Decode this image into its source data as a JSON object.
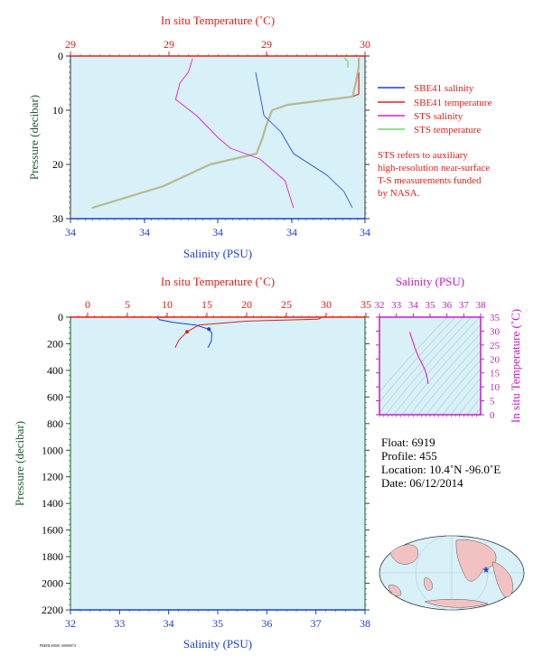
{
  "top_chart": {
    "top_axis_title": "In situ Temperature (˚C)",
    "bottom_axis_title": "Salinity (PSU)",
    "y_axis_title": "Pressure (decibar)",
    "top_ticks": [
      "29",
      "29",
      "29",
      "30"
    ],
    "bottom_ticks": [
      "34",
      "34",
      "34",
      "34",
      "34"
    ],
    "y_ticks": [
      "0",
      "10",
      "20",
      "30"
    ],
    "legend": [
      {
        "label": "SBE41 salinity",
        "color": "#1a3fd6"
      },
      {
        "label": "SBE41 temperature",
        "color": "#e0201a"
      },
      {
        "label": "STS salinity",
        "color": "#e020c8"
      },
      {
        "label": "STS temperature",
        "color": "#6fd66a"
      }
    ],
    "note": [
      "STS refers to auxiliary",
      "high-resolution near-surface",
      "T-S measurements funded",
      "by NASA."
    ]
  },
  "bottom_chart": {
    "top_axis_title": "In situ Temperature (˚C)",
    "bottom_axis_title": "Salinity (PSU)",
    "y_axis_title": "Pressure (decibar)",
    "top_ticks": [
      "0",
      "5",
      "10",
      "15",
      "20",
      "25",
      "30",
      "35"
    ],
    "bottom_ticks": [
      "32",
      "33",
      "34",
      "35",
      "36",
      "37",
      "38"
    ],
    "y_ticks": [
      "0",
      "200",
      "400",
      "600",
      "800",
      "1000",
      "1200",
      "1400",
      "1600",
      "1800",
      "2000",
      "2200"
    ]
  },
  "ts_chart": {
    "top_axis_title": "Salinity (PSU)",
    "right_axis_title": "In situ Temperature (˚C)",
    "top_ticks": [
      "32",
      "33",
      "34",
      "35",
      "36",
      "37",
      "38"
    ],
    "right_ticks": [
      "35",
      "30",
      "25",
      "20",
      "15",
      "10",
      "5",
      "0"
    ]
  },
  "info": {
    "float": "Float:  6919",
    "profile": "Profile:  455",
    "location": "Location:  10.4˚N  -96.0˚E",
    "date": "Date:  06/12/2014"
  },
  "footer_code": "PRIMUS0001 00000074",
  "colors": {
    "plot_bg": "#d8f0f8",
    "red_axis": "#e0201a",
    "blue_axis": "#1a3fd6",
    "magenta_axis": "#c020c0",
    "pressure_label": "#1f5a2a"
  },
  "chart_data": [
    {
      "type": "line",
      "title": "",
      "ylabel": "Pressure (decibar)",
      "ylim": [
        30,
        0
      ],
      "series": [
        {
          "name": "SBE41 salinity",
          "axis": "salinity",
          "x": [
            33.99,
            34.0,
            34.01,
            34.05,
            34.08,
            34.12,
            34.16,
            34.2,
            34.22
          ],
          "y": [
            3,
            7,
            11,
            14,
            18,
            20,
            22,
            25,
            28
          ]
        },
        {
          "name": "SBE41 temperature",
          "axis": "temperature",
          "x": [
            29.88,
            29.88,
            29.86,
            29.65,
            29.6,
            29.58,
            29.57,
            29.55,
            29.4,
            29.25,
            29.02
          ],
          "y": [
            3,
            7,
            7.5,
            9,
            10,
            13,
            15,
            18,
            20,
            24,
            28
          ]
        },
        {
          "name": "STS salinity",
          "axis": "salinity",
          "x": [
            33.84,
            33.83,
            33.81,
            33.8,
            33.85,
            33.9,
            33.93,
            34.0,
            34.06,
            34.08
          ],
          "y": [
            0.5,
            3,
            5,
            8,
            11,
            15,
            17,
            19,
            23,
            28
          ]
        },
        {
          "name": "STS temperature",
          "axis": "temperature",
          "x": [
            29.88,
            29.88,
            29.87,
            29.86,
            29.65,
            29.6,
            29.58,
            29.57,
            29.55,
            29.4,
            29.25,
            29.02
          ],
          "y": [
            0.3,
            2,
            5,
            7.5,
            9,
            10,
            13,
            15,
            18,
            20,
            24,
            28
          ]
        }
      ]
    },
    {
      "type": "line",
      "title": "",
      "xlabel": "Salinity (PSU)",
      "ylabel": "Pressure (decibar)",
      "xlim": [
        32,
        38
      ],
      "ylim": [
        2200,
        0
      ],
      "series": [
        {
          "name": "salinity",
          "axis": "salinity",
          "x": [
            33.75,
            33.82,
            34.1,
            34.55,
            34.82,
            34.88,
            34.87,
            34.8
          ],
          "y": [
            0,
            20,
            40,
            60,
            90,
            120,
            180,
            230
          ]
        },
        {
          "name": "temperature",
          "axis": "temperature",
          "x": [
            29.5,
            29.0,
            20.0,
            14.0,
            12.5,
            11.5,
            11.0
          ],
          "y": [
            0,
            15,
            30,
            60,
            110,
            170,
            230
          ]
        }
      ],
      "temperature_range": [
        0,
        35
      ]
    },
    {
      "type": "scatter",
      "title": "",
      "xlabel": "Salinity (PSU)",
      "ylabel": "In situ Temperature (˚C)",
      "xlim": [
        32,
        38
      ],
      "ylim": [
        0,
        35
      ],
      "series": [
        {
          "name": "T-S",
          "x": [
            33.8,
            33.85,
            34.0,
            34.1,
            34.3,
            34.55,
            34.7,
            34.8,
            34.85,
            34.88
          ],
          "y": [
            29.7,
            28.5,
            26,
            24,
            21,
            18,
            16,
            14,
            12.5,
            11
          ]
        }
      ]
    }
  ]
}
